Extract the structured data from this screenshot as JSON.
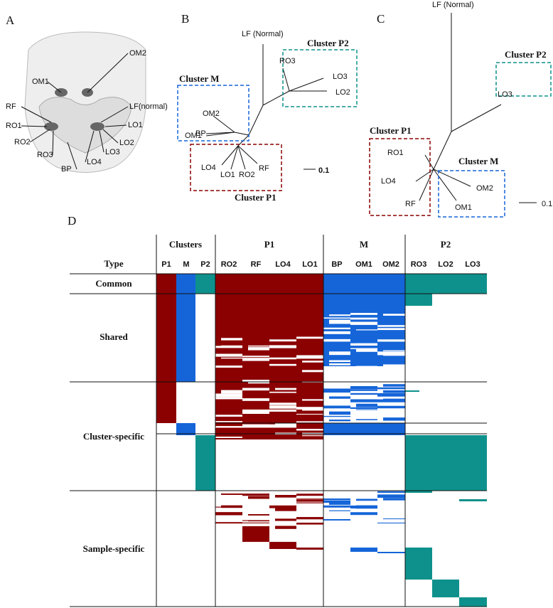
{
  "panel_a": {
    "label": "A",
    "sites": [
      "OM1",
      "OM2",
      "RF",
      "RO1",
      "RO2",
      "RO3",
      "BP",
      "LO4",
      "LO3",
      "LO2",
      "LO1",
      "LF(normal)"
    ]
  },
  "panel_b": {
    "label": "B",
    "root": "LF (Normal)",
    "leaves": [
      "RO3",
      "LO3",
      "LO2",
      "OM2",
      "BP",
      "OM1",
      "LO4",
      "LO1",
      "RO2",
      "RF"
    ],
    "clusters": [
      "Cluster P2",
      "Cluster M",
      "Cluster P1"
    ],
    "scale": "0.1"
  },
  "panel_c": {
    "label": "C",
    "root": "LF (Normal)",
    "leaves": [
      "LO3",
      "RO1",
      "LO4",
      "RF",
      "OM2",
      "OM1"
    ],
    "clusters": [
      "Cluster P2",
      "Cluster P1",
      "Cluster M"
    ],
    "scale": "0.1"
  },
  "panel_d": {
    "label": "D",
    "group_headers": [
      "Clusters",
      "P1",
      "M",
      "P2"
    ],
    "column_headers": [
      "Type",
      "P1",
      "M",
      "P2",
      "RO2",
      "RF",
      "LO4",
      "LO1",
      "BP",
      "OM1",
      "OM2",
      "RO3",
      "LO2",
      "LO3"
    ],
    "row_types": [
      "Common",
      "Shared",
      "Cluster-specific",
      "Sample-specific"
    ]
  }
}
